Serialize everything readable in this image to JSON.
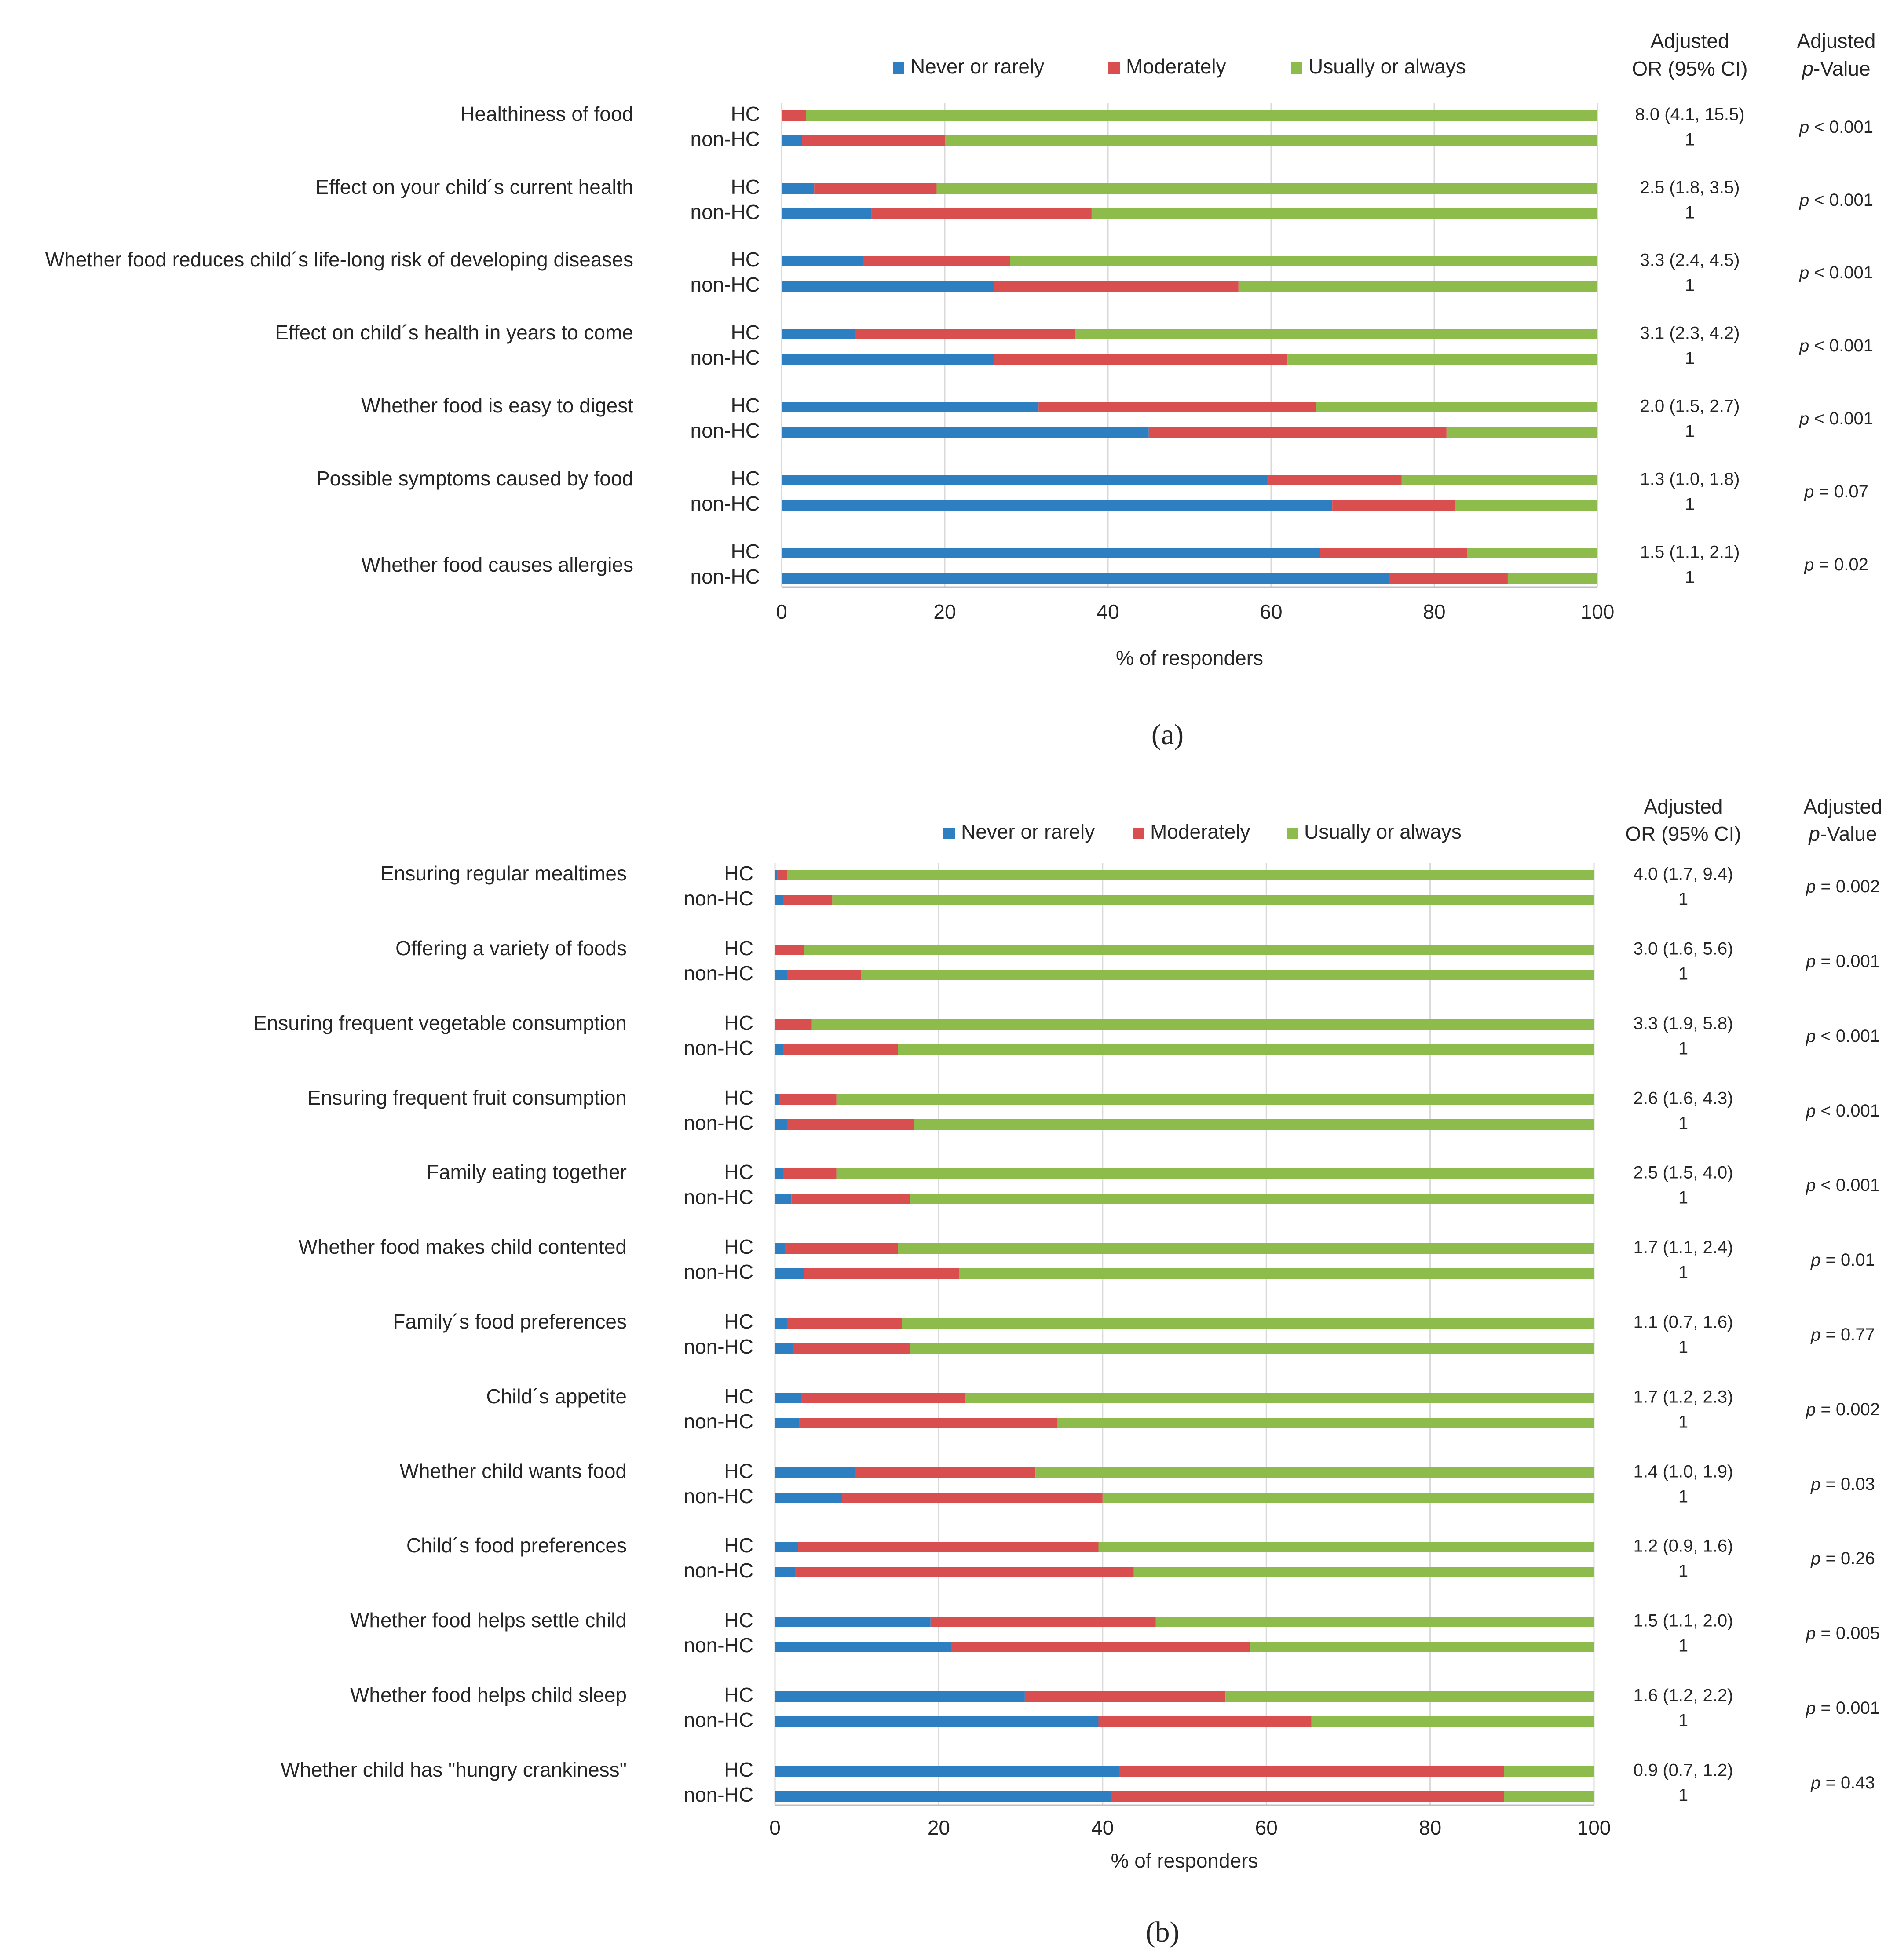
{
  "colors": {
    "never": "#2E7EC2",
    "moderately": "#D94F4F",
    "usually": "#8DBB4C"
  },
  "chart_data": [
    {
      "type": "bar",
      "orientation": "horizontal",
      "stacked": true,
      "panel_label": "(a)",
      "xlabel": "% of responders",
      "xlim": [
        0,
        100
      ],
      "xticks": [
        "0",
        "20",
        "40",
        "60",
        "80",
        "100"
      ],
      "legend": [
        "Never or rarely",
        "Moderately",
        "Usually or always"
      ],
      "or_header": [
        "Adjusted",
        "OR (95% CI)"
      ],
      "p_header": [
        "Adjusted",
        "-Value"
      ],
      "p_header_italic": "p",
      "groups": [
        "HC",
        "non-HC"
      ],
      "categories": [
        {
          "label": "Healthiness of food",
          "or": [
            "8.0 (4.1, 15.5)",
            "1"
          ],
          "p_rel": "<",
          "p_val": "0.001",
          "values": [
            [
              0,
              3,
              97
            ],
            [
              2.5,
              17.5,
              80
            ]
          ]
        },
        {
          "label": "Effect on your child´s current health",
          "or": [
            "2.5 (1.8, 3.5)",
            "1"
          ],
          "p_rel": "<",
          "p_val": "0.001",
          "values": [
            [
              4,
              15,
              81
            ],
            [
              11,
              27,
              62
            ]
          ]
        },
        {
          "label": "Whether food reduces child´s life-long risk of developing diseases",
          "or": [
            "3.3 (2.4, 4.5)",
            "1"
          ],
          "p_rel": "<",
          "p_val": "0.001",
          "values": [
            [
              10,
              18,
              72
            ],
            [
              26,
              30,
              44
            ]
          ]
        },
        {
          "label": "Effect on child´s health in years to come",
          "or": [
            "3.1 (2.3, 4.2)",
            "1"
          ],
          "p_rel": "<",
          "p_val": "0.001",
          "values": [
            [
              9,
              27,
              64
            ],
            [
              26,
              36,
              38
            ]
          ]
        },
        {
          "label": "Whether food is easy to digest",
          "or": [
            "2.0 (1.5, 2.7)",
            "1"
          ],
          "p_rel": "<",
          "p_val": "0.001",
          "values": [
            [
              31.5,
              34,
              34.5
            ],
            [
              45,
              36.5,
              18.5
            ]
          ]
        },
        {
          "label": "Possible symptoms caused by food",
          "or": [
            "1.3 (1.0, 1.8)",
            "1"
          ],
          "p_rel": "=",
          "p_val": "0.07",
          "values": [
            [
              59.5,
              16.5,
              24
            ],
            [
              67.5,
              15,
              17.5
            ]
          ]
        },
        {
          "label": "Whether food causes allergies",
          "or": [
            "1.5 (1.1, 2.1)",
            "1"
          ],
          "p_rel": "=",
          "p_val": "0.02",
          "values": [
            [
              66,
              18,
              16
            ],
            [
              74.5,
              14.5,
              11
            ]
          ]
        }
      ]
    },
    {
      "type": "bar",
      "orientation": "horizontal",
      "stacked": true,
      "panel_label": "(b)",
      "xlabel": "% of responders",
      "xlim": [
        0,
        100
      ],
      "xticks": [
        "0",
        "20",
        "40",
        "60",
        "80",
        "100"
      ],
      "legend": [
        "Never or rarely",
        "Moderately",
        "Usually or always"
      ],
      "or_header": [
        "Adjusted",
        "OR (95% CI)"
      ],
      "p_header": [
        "Adjusted",
        "-Value"
      ],
      "p_header_italic": "p",
      "groups": [
        "HC",
        "non-HC"
      ],
      "categories": [
        {
          "label": "Ensuring regular mealtimes",
          "or": [
            "4.0 (1.7, 9.4)",
            "1"
          ],
          "p_rel": "=",
          "p_val": "0.002",
          "values": [
            [
              0.3,
              1.2,
              98.5
            ],
            [
              1,
              6,
              93
            ]
          ]
        },
        {
          "label": "Offering a variety of foods",
          "or": [
            "3.0 (1.6, 5.6)",
            "1"
          ],
          "p_rel": "=",
          "p_val": "0.001",
          "values": [
            [
              0,
              3.5,
              96.5
            ],
            [
              1.5,
              9,
              89.5
            ]
          ]
        },
        {
          "label": "Ensuring frequent vegetable consumption",
          "or": [
            "3.3 (1.9, 5.8)",
            "1"
          ],
          "p_rel": "<",
          "p_val": "0.001",
          "values": [
            [
              0,
              4.5,
              95.5
            ],
            [
              1,
              14,
              85
            ]
          ]
        },
        {
          "label": "Ensuring frequent fruit consumption",
          "or": [
            "2.6 (1.6, 4.3)",
            "1"
          ],
          "p_rel": "<",
          "p_val": "0.001",
          "values": [
            [
              0.5,
              7,
              92.5
            ],
            [
              1.5,
              15.5,
              83
            ]
          ]
        },
        {
          "label": "Family eating together",
          "or": [
            "2.5 (1.5, 4.0)",
            "1"
          ],
          "p_rel": "<",
          "p_val": "0.001",
          "values": [
            [
              1,
              6.5,
              92.5
            ],
            [
              2,
              14.5,
              83.5
            ]
          ]
        },
        {
          "label": "Whether food makes child contented",
          "or": [
            "1.7 (1.1, 2.4)",
            "1"
          ],
          "p_rel": "=",
          "p_val": "0.01",
          "values": [
            [
              1.2,
              13.8,
              85
            ],
            [
              3.5,
              19,
              77.5
            ]
          ]
        },
        {
          "label": "Family´s food preferences",
          "or": [
            "1.1 (0.7, 1.6)",
            "1"
          ],
          "p_rel": "=",
          "p_val": "0.77",
          "values": [
            [
              1.5,
              14,
              84.5
            ],
            [
              2.2,
              14.3,
              83.5
            ]
          ]
        },
        {
          "label": "Child´s appetite",
          "or": [
            "1.7 (1.2, 2.3)",
            "1"
          ],
          "p_rel": "=",
          "p_val": "0.002",
          "values": [
            [
              3.2,
              20,
              76.8
            ],
            [
              3,
              31.5,
              65.5
            ]
          ]
        },
        {
          "label": "Whether child wants food",
          "or": [
            "1.4 (1.0, 1.9)",
            "1"
          ],
          "p_rel": "=",
          "p_val": "0.03",
          "values": [
            [
              9.8,
              22,
              68.2
            ],
            [
              8.2,
              31.8,
              60
            ]
          ]
        },
        {
          "label": "Child´s food preferences",
          "or": [
            "1.2 (0.9, 1.6)",
            "1"
          ],
          "p_rel": "=",
          "p_val": "0.26",
          "values": [
            [
              2.8,
              36.7,
              60.5
            ],
            [
              2.5,
              41.3,
              56.2
            ]
          ]
        },
        {
          "label": "Whether food helps settle child",
          "or": [
            "1.5 (1.1, 2.0)",
            "1"
          ],
          "p_rel": "=",
          "p_val": "0.005",
          "values": [
            [
              19,
              27.5,
              53.5
            ],
            [
              21.5,
              36.5,
              42
            ]
          ]
        },
        {
          "label": "Whether food helps child sleep",
          "or": [
            "1.6 (1.2, 2.2)",
            "1"
          ],
          "p_rel": "=",
          "p_val": "0.001",
          "values": [
            [
              30.5,
              24.5,
              45
            ],
            [
              39.5,
              26,
              34.5
            ]
          ]
        },
        {
          "label": "Whether child has \"hungry crankiness\"",
          "or": [
            "0.9 (0.7, 1.2)",
            "1"
          ],
          "p_rel": "=",
          "p_val": "0.43",
          "values": [
            [
              42,
              47,
              11
            ],
            [
              41,
              48,
              11
            ]
          ]
        }
      ]
    }
  ]
}
